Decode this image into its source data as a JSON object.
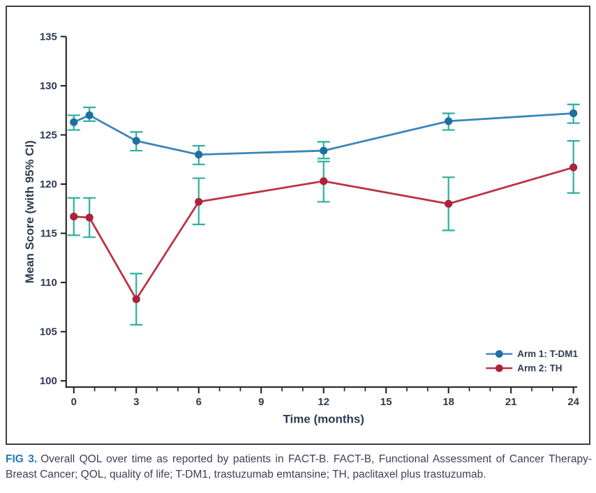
{
  "figure": {
    "caption": {
      "label": "FIG 3.",
      "text": "Overall QOL over time as reported by patients in FACT-B. FACT-B, Functional Assessment of Cancer Therapy-Breast Cancer; QOL, quality of life; T-DM1, trastuzumab emtansine; TH, paclitaxel plus trastuzumab."
    }
  },
  "colors": {
    "axis": "#1a1a1a",
    "tick_text": "#2d3a52",
    "axis_title_text": "#2d3a52",
    "legend_text": "#2d3a52",
    "error_bar": "#2dae9f",
    "figure_border": "#3f3f3f",
    "caption_label_blue": "#2277b8",
    "caption_text": "#3e3e58",
    "background": "#ffffff"
  },
  "chart_data": {
    "type": "line",
    "title": "",
    "xlabel": "Time (months)",
    "ylabel": "Mean Score (with 95% CI)",
    "xlim": [
      0,
      24
    ],
    "ylim": [
      100,
      135
    ],
    "x_ticks": [
      0,
      3,
      6,
      9,
      12,
      15,
      18,
      21,
      24
    ],
    "x_minor_tick_every": 1,
    "y_ticks": [
      100,
      105,
      110,
      115,
      120,
      125,
      130,
      135
    ],
    "grid": false,
    "error_bars": "95% CI",
    "legend_position": "inside bottom-right",
    "series": [
      {
        "name": "Arm 1: T-DM1",
        "line_color": "#3b86b8",
        "marker_color": "#1d6fa4",
        "x": [
          0,
          0.75,
          3,
          6,
          12,
          18,
          24
        ],
        "y": [
          126.3,
          127.0,
          124.4,
          123.0,
          123.4,
          126.4,
          127.2
        ],
        "ci_low": [
          125.5,
          126.4,
          123.4,
          122.0,
          122.6,
          125.5,
          126.2
        ],
        "ci_high": [
          127.0,
          127.8,
          125.3,
          123.9,
          124.3,
          127.2,
          128.1
        ]
      },
      {
        "name": "Arm 2: TH",
        "line_color": "#bc3246",
        "marker_color": "#ab2239",
        "x": [
          0,
          0.75,
          3,
          6,
          12,
          18,
          24
        ],
        "y": [
          116.7,
          116.6,
          108.3,
          118.2,
          120.3,
          118.0,
          121.7
        ],
        "ci_low": [
          114.8,
          114.6,
          105.7,
          115.9,
          118.2,
          115.3,
          119.1
        ],
        "ci_high": [
          118.6,
          118.6,
          110.9,
          120.6,
          122.3,
          120.7,
          124.4
        ]
      }
    ]
  }
}
